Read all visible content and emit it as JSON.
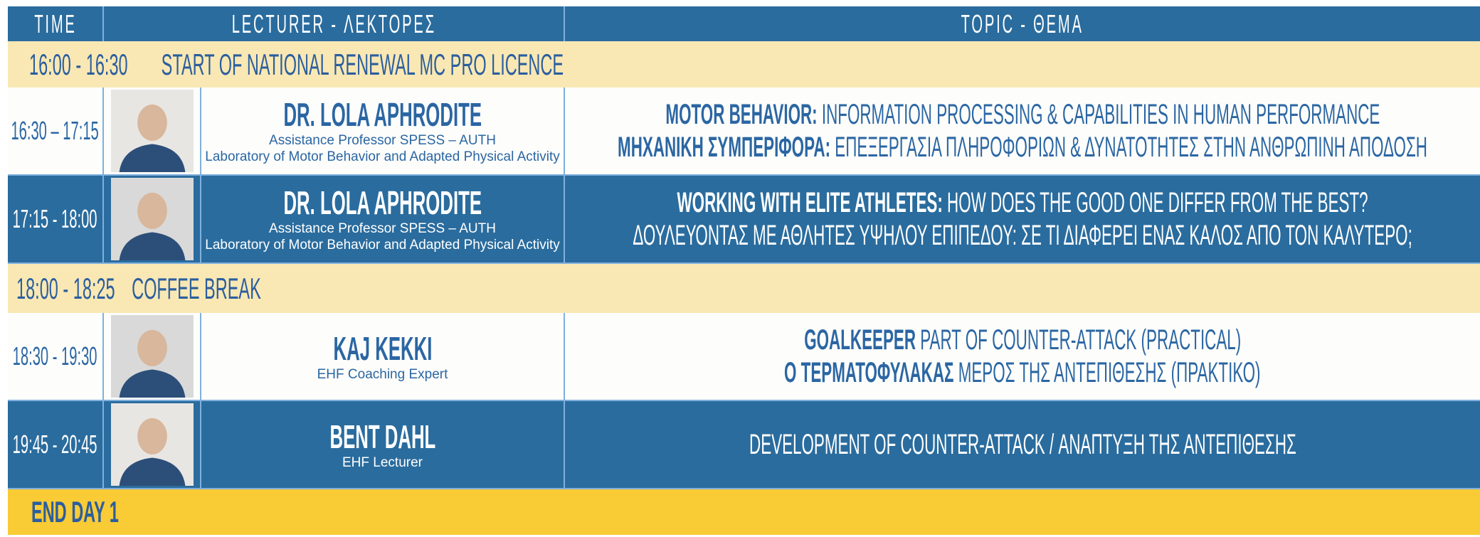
{
  "header": {
    "time": "TIME",
    "lecturer": "LECTURER - ΛΕΚΤΟΡΕΣ",
    "topic": "TOPIC - ΘΕΜΑ",
    "background": "#2a6c9e"
  },
  "rows": [
    {
      "time": "16:00 - 16:30",
      "text": "START OF NATIONAL RENEWAL MC PRO LICENCE",
      "background": "#f9e8b4"
    },
    {
      "time": "16:30 – 17:15",
      "name": "DR. LOLA APHRODITE",
      "details": [
        "Assistance Professor SPESS – AUTH",
        "Laboratory of Motor Behavior and Adapted Physical Activity"
      ],
      "topic": [
        {
          "bold": "MOTOR BEHAVIOR:",
          "text": "INFORMATION PROCESSING & CAPABILITIES IN HUMAN PERFORMANCE"
        },
        {
          "bold": "ΜΗΧΑΝΙΚΗ ΣΥΜΠΕΡΙΦΟΡΑ:",
          "text": "ΕΠΕΞΕΡΓΑΣΙΑ ΠΛΗΡΟΦΟΡΙΩΝ & ΔΥΝΑΤΟΤΗΤΕΣ ΣΤΗΝ ΑΝΘΡΩΠΙΝΗ ΑΠΟΔΟΣΗ"
        }
      ],
      "background": "#fdfdfb",
      "color": "#2b66a3"
    },
    {
      "time": "17:15 - 18:00",
      "name": "DR. LOLA APHRODITE",
      "details": [
        "Assistance Professor SPESS – AUTH",
        "Laboratory of Motor Behavior and Adapted Physical Activity"
      ],
      "topic": [
        {
          "bold": "WORKING WITH ELITE ATHLETES:",
          "text": "HOW DOES THE GOOD ONE DIFFER FROM THE BEST?"
        },
        {
          "text": "ΔΟΥΛΕΥΟΝΤΑΣ ΜΕ ΑΘΛΗΤΕΣ ΥΨΗΛΟΥ ΕΠΙΠΕΔΟΥ: ΣΕ ΤΙ  ΔΙΑΦΕΡΕΙ ΕΝΑΣ ΚΑΛΟΣ ΑΠΟ ΤΟΝ ΚΑΛΥΤΕΡΟ;"
        }
      ],
      "background": "#2a6c9e",
      "color": "#ffffff"
    },
    {
      "time": "18:00 - 18:25",
      "text": "COFFEE BREAK",
      "background": "#f9e8b4"
    },
    {
      "time": "18:30 - 19:30",
      "name": "KAJ KEKKI",
      "details": [
        "EHF Coaching Expert"
      ],
      "topic": [
        {
          "bold": "GOALKEEPER",
          "text": "PART OF COUNTER-ATTACK (PRACTICAL)"
        },
        {
          "bold": "Ο ΤΕΡΜΑΤΟΦΥΛΑΚΑΣ",
          "text": "ΜΕΡΟΣ ΤΗΣ ΑΝΤΕΠΙΘΕΣΗΣ (ΠΡΑΚΤΙΚΟ)"
        }
      ],
      "background": "#fdfdfb",
      "color": "#2b66a3"
    },
    {
      "time": "19:45 - 20:45",
      "name": "BENT DAHL",
      "details": [
        "EHF Lecturer"
      ],
      "topic": [
        {
          "text": "DEVELOPMENT OF COUNTER-ATTACK / ΑΝΑΠΤΥΞΗ ΤΗΣ ΑΝΤΕΠΙΘΕΣΗΣ"
        }
      ],
      "background": "#2a6c9e",
      "color": "#ffffff"
    },
    {
      "text": "END DAY 1",
      "background": "#f9cb35"
    }
  ]
}
